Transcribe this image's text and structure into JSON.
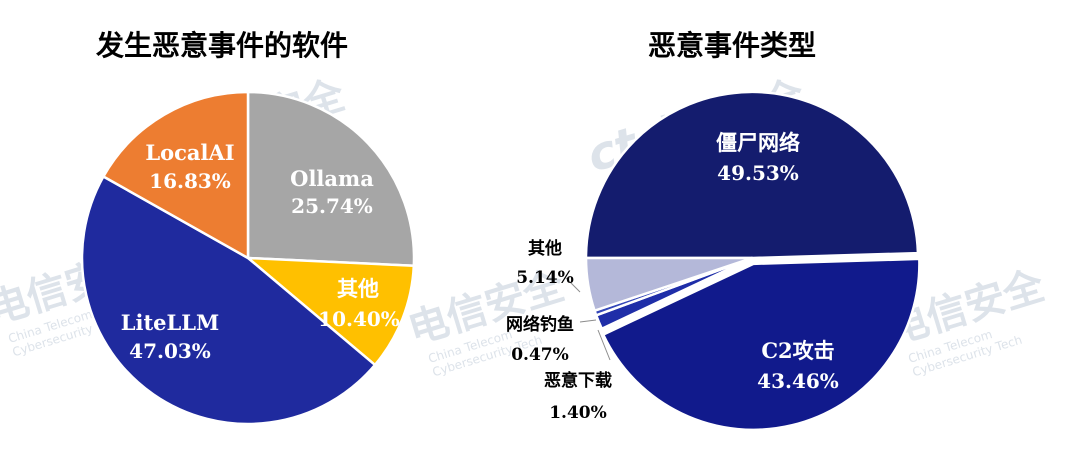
{
  "watermark": {
    "text_cn": "电信安全",
    "text_en_1": "China Telecom",
    "text_en_2": "Cybersecurity Tech",
    "logo": "ct"
  },
  "chart_data": [
    {
      "type": "pie",
      "title": "发生恶意事件的软件",
      "slices": [
        {
          "label": "Ollama",
          "value": 25.74,
          "value_text": "25.74%",
          "color": "#a6a6a6"
        },
        {
          "label": "其他",
          "value": 10.4,
          "value_text": "10.40%",
          "color": "#ffc000"
        },
        {
          "label": "LiteLLM",
          "value": 47.03,
          "value_text": "47.03%",
          "color": "#1f2a9e"
        },
        {
          "label": "LocalAI",
          "value": 16.83,
          "value_text": "16.83%",
          "color": "#ed7d31"
        }
      ]
    },
    {
      "type": "pie",
      "title": "恶意事件类型",
      "slices": [
        {
          "label": "僵尸网络",
          "value": 49.53,
          "value_text": "49.53%",
          "color": "#141c6e"
        },
        {
          "label": "C2攻击",
          "value": 43.46,
          "value_text": "43.46%",
          "color": "#111a8c"
        },
        {
          "label": "恶意下载",
          "value": 1.4,
          "value_text": "1.40%",
          "color": "#1f2ea8"
        },
        {
          "label": "网络钓鱼",
          "value": 0.47,
          "value_text": "0.47%",
          "color": "#3346b8"
        },
        {
          "label": "其他",
          "value": 5.14,
          "value_text": "5.14%",
          "color": "#b4b8d9"
        }
      ]
    }
  ]
}
